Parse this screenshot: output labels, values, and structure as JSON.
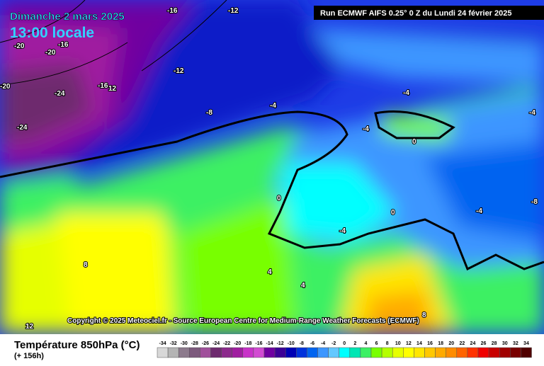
{
  "header": {
    "date": "Dimanche 2 mars 2025",
    "time": "13:00 locale",
    "run": "Run ECMWF AIFS 0.25° 0 Z du Lundi 24 février 2025"
  },
  "map": {
    "contour_labels": [
      "-16",
      "-12",
      "-20",
      "-16",
      "-20",
      "-12",
      "-20",
      "-24",
      "-16",
      "12",
      "-24",
      "-8",
      "-4",
      "-4",
      "-4",
      "-4",
      "0",
      "0",
      "0",
      "-4",
      "-4",
      "-8",
      "8",
      "4",
      "4",
      "8",
      "12"
    ],
    "copyright": "Copyright © 2025 Meteociel.fr - Source European Centre for Medium-Range Weather Forecasts (ECMWF)"
  },
  "legend": {
    "title": "Température 850hPa (°C)",
    "subtitle": "(+ 156h)",
    "ticks": [
      -34,
      -32,
      -30,
      -28,
      -26,
      -24,
      -22,
      -20,
      -18,
      -16,
      -14,
      -12,
      -10,
      -8,
      -6,
      -4,
      -2,
      0,
      2,
      4,
      6,
      8,
      10,
      12,
      14,
      16,
      18,
      20,
      22,
      24,
      26,
      28,
      30,
      32,
      34
    ],
    "colors": [
      "#d8d8d8",
      "#b4b4b4",
      "#8c7a8c",
      "#7d5a7d",
      "#a0509b",
      "#6e2a6e",
      "#8c2a8c",
      "#a01ea0",
      "#c832c8",
      "#d24bd2",
      "#7000a0",
      "#3c0096",
      "#0000b4",
      "#0032dc",
      "#0064f0",
      "#3c96ff",
      "#64c8ff",
      "#00ffff",
      "#00e6b4",
      "#3cf064",
      "#78ff00",
      "#b4ff00",
      "#e6ff00",
      "#ffff00",
      "#ffe600",
      "#ffc800",
      "#ffaa00",
      "#ff8c00",
      "#ff6400",
      "#ff3200",
      "#f00000",
      "#c80000",
      "#a00000",
      "#780000",
      "#500000"
    ]
  }
}
